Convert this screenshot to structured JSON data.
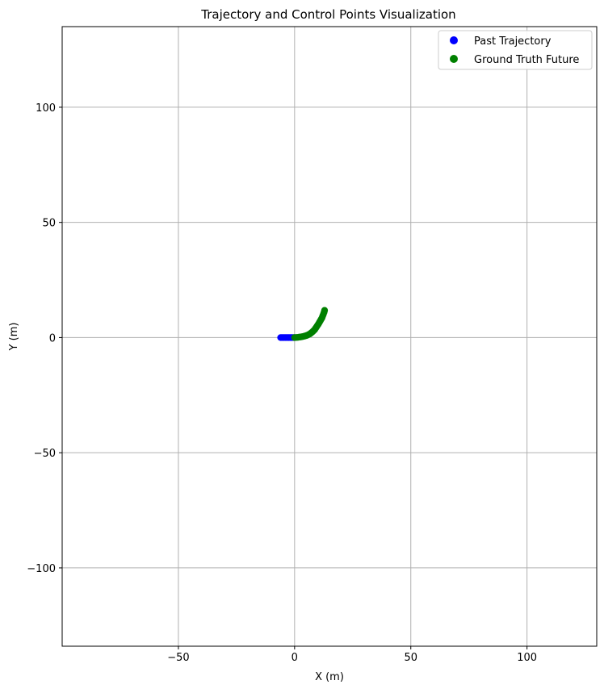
{
  "chart_data": {
    "type": "scatter",
    "title": "Trajectory and Control Points Visualization",
    "xlabel": "X (m)",
    "ylabel": "Y (m)",
    "xlim": [
      -100,
      130
    ],
    "ylim": [
      -134,
      135
    ],
    "xticks": [
      -50,
      0,
      50,
      100
    ],
    "yticks": [
      -100,
      -50,
      0,
      50,
      100
    ],
    "xtick_labels": [
      "−50",
      "0",
      "50",
      "100"
    ],
    "ytick_labels": [
      "−100",
      "−50",
      "0",
      "50",
      "100"
    ],
    "grid": true,
    "legend_position": "top-right",
    "series": [
      {
        "name": "Past Trajectory",
        "color": "#0000ff",
        "x": [
          -6.0,
          -5.5,
          -5.0,
          -4.5,
          -4.0,
          -3.5,
          -3.0,
          -2.5,
          -2.0,
          -1.5,
          -1.0,
          -0.5,
          0.0
        ],
        "y": [
          0.0,
          0.0,
          0.0,
          0.0,
          0.0,
          0.0,
          0.0,
          0.0,
          0.0,
          0.0,
          0.0,
          0.0,
          0.0
        ]
      },
      {
        "name": "Ground Truth Future",
        "color": "#008000",
        "x": [
          0.0,
          0.7,
          1.4,
          2.1,
          2.8,
          3.5,
          4.2,
          4.8,
          5.4,
          6.0,
          6.6,
          7.1,
          7.6,
          8.1,
          8.6,
          9.0,
          9.4,
          9.8,
          10.2,
          10.6,
          11.0,
          11.4,
          11.8,
          12.1,
          12.4,
          12.7,
          12.9
        ],
        "y": [
          0.0,
          0.05,
          0.1,
          0.2,
          0.3,
          0.45,
          0.6,
          0.8,
          1.0,
          1.3,
          1.6,
          2.0,
          2.4,
          2.9,
          3.4,
          4.0,
          4.6,
          5.2,
          5.8,
          6.5,
          7.2,
          7.9,
          8.6,
          9.4,
          10.2,
          11.0,
          11.8
        ]
      }
    ]
  }
}
